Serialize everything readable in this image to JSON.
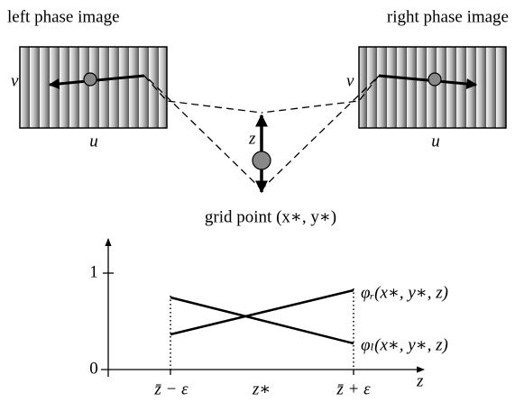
{
  "header": {
    "left_title": "left phase image",
    "right_title": "right phase image"
  },
  "left_image": {
    "v_label": "v",
    "u_label": "u"
  },
  "right_image": {
    "v_label": "v",
    "u_label": "u"
  },
  "center": {
    "z_label": "z",
    "grid_point": "grid point (x∗, y∗)"
  },
  "plot": {
    "y_tick_labels": [
      "1",
      "0"
    ],
    "x_tick_labels": [
      "z̄ − ε",
      "z∗",
      "z̄ + ε"
    ],
    "x_axis_label": "z",
    "curve_labels": [
      "φᵣ(x∗, y∗, z)",
      "φₗ(x∗, y∗, z)"
    ]
  }
}
